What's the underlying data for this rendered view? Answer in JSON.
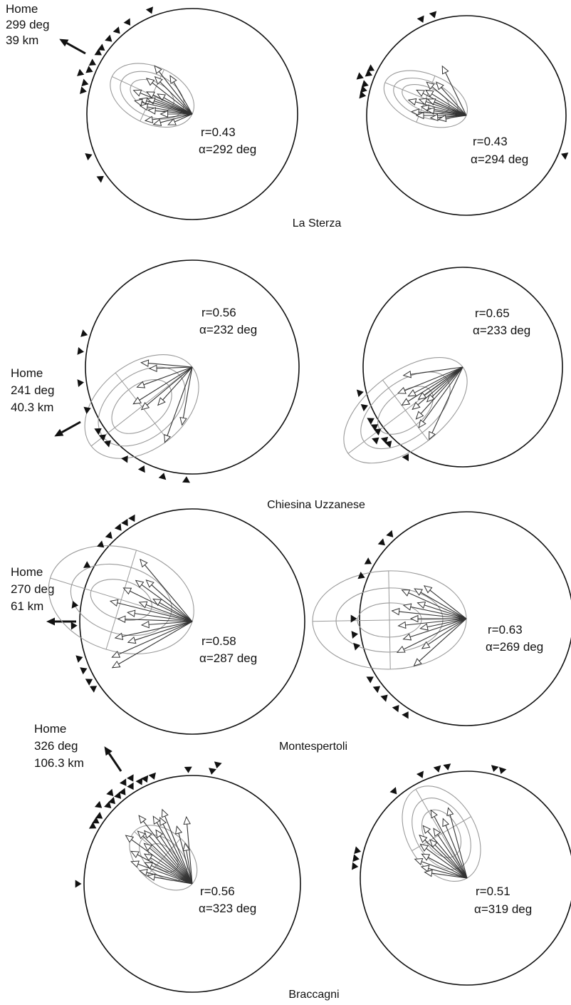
{
  "chart_data": [
    {
      "type": "scatter",
      "site": "La Sterza",
      "home": {
        "label": "Home",
        "bearing_text": "299 deg",
        "distance_text": "39 km",
        "bearing_deg": 299
      },
      "panels": [
        {
          "r_label": "r=0.43",
          "alpha_label": "α=292 deg",
          "vector_bearings_deg": [
            330,
            322,
            315,
            308,
            300,
            296,
            292,
            289,
            286,
            283,
            279,
            275,
            270,
            262,
            255,
            246
          ],
          "vector_lengths": [
            0.42,
            0.58,
            0.5,
            0.55,
            0.38,
            0.48,
            0.6,
            0.45,
            0.52,
            0.56,
            0.5,
            0.42,
            0.3,
            0.45,
            0.38,
            0.25
          ],
          "released_bearings_deg": [
            338,
            325,
            318,
            312,
            306,
            303,
            297,
            293,
            290,
            286,
            282,
            248,
            235
          ],
          "confidence_ellipses": [
            {
              "bearing_deg": 295,
              "semi_major": 0.22,
              "semi_minor": 0.13
            },
            {
              "bearing_deg": 295,
              "semi_major": 0.32,
              "semi_minor": 0.2
            },
            {
              "bearing_deg": 295,
              "semi_major": 0.42,
              "semi_minor": 0.27
            }
          ]
        },
        {
          "r_label": "r=0.43",
          "alpha_label": "α=294 deg",
          "vector_bearings_deg": [
            334,
            318,
            310,
            302,
            297,
            293,
            289,
            285,
            281,
            278,
            274,
            270,
            266,
            262
          ],
          "vector_lengths": [
            0.55,
            0.45,
            0.52,
            0.48,
            0.56,
            0.42,
            0.5,
            0.6,
            0.46,
            0.4,
            0.55,
            0.5,
            0.36,
            0.28
          ],
          "released_bearings_deg": [
            342,
            335,
            296,
            293,
            290,
            287,
            284,
            281,
            112
          ],
          "confidence_ellipses": [
            {
              "bearing_deg": 292,
              "semi_major": 0.25,
              "semi_minor": 0.12
            },
            {
              "bearing_deg": 292,
              "semi_major": 0.34,
              "semi_minor": 0.18
            },
            {
              "bearing_deg": 292,
              "semi_major": 0.44,
              "semi_minor": 0.25
            }
          ]
        }
      ]
    },
    {
      "type": "scatter",
      "site": "Chiesina Uzzanese",
      "home": {
        "label": "Home",
        "bearing_text": "241 deg",
        "distance_text": "40.3 km",
        "bearing_deg": 241
      },
      "panels": [
        {
          "r_label": "r=0.56",
          "alpha_label": "α=232 deg",
          "vector_bearings_deg": [
            275,
            268,
            250,
            238,
            230,
            222,
            200,
            190
          ],
          "vector_lengths": [
            0.48,
            0.4,
            0.55,
            0.65,
            0.62,
            0.48,
            0.75,
            0.55
          ],
          "released_bearings_deg": [
            287,
            278,
            262,
            248,
            236,
            232,
            228,
            216,
            206,
            195,
            183
          ],
          "confidence_ellipses": [
            {
              "bearing_deg": 232,
              "semi_major": 0.32,
              "semi_minor": 0.2
            },
            {
              "bearing_deg": 232,
              "semi_major": 0.46,
              "semi_minor": 0.3
            },
            {
              "bearing_deg": 232,
              "semi_major": 0.6,
              "semi_minor": 0.4
            }
          ]
        },
        {
          "r_label": "r=0.65",
          "alpha_label": "α=233 deg",
          "vector_bearings_deg": [
            262,
            248,
            242,
            238,
            234,
            230,
            226,
            222,
            216,
            205
          ],
          "vector_lengths": [
            0.6,
            0.7,
            0.62,
            0.72,
            0.55,
            0.66,
            0.5,
            0.7,
            0.75,
            0.8
          ],
          "released_bearings_deg": [
            256,
            248,
            240,
            236,
            233,
            230,
            227,
            224,
            212
          ],
          "confidence_ellipses": [
            {
              "bearing_deg": 233,
              "semi_major": 0.32,
              "semi_minor": 0.18
            },
            {
              "bearing_deg": 233,
              "semi_major": 0.52,
              "semi_minor": 0.28
            },
            {
              "bearing_deg": 233,
              "semi_major": 0.72,
              "semi_minor": 0.38
            }
          ]
        }
      ]
    },
    {
      "type": "scatter",
      "site": "Montespertoli",
      "home": {
        "label": "Home",
        "bearing_text": "270 deg",
        "distance_text": "61 km",
        "bearing_deg": 270
      },
      "panels": [
        {
          "r_label": "r=0.58",
          "alpha_label": "α=287 deg",
          "vector_bearings_deg": [
            320,
            312,
            306,
            300,
            296,
            290,
            284,
            278,
            272,
            266,
            258,
            252,
            246,
            240
          ],
          "vector_lengths": [
            0.72,
            0.55,
            0.62,
            0.4,
            0.68,
            0.5,
            0.75,
            0.58,
            0.66,
            0.45,
            0.7,
            0.6,
            0.78,
            0.82
          ],
          "released_bearings_deg": [
            330,
            326,
            322,
            316,
            310,
            298,
            278,
            268,
            252,
            246,
            240,
            236
          ],
          "confidence_ellipses": [
            {
              "bearing_deg": 287,
              "semi_major": 0.28,
              "semi_minor": 0.17
            },
            {
              "bearing_deg": 287,
              "semi_major": 0.46,
              "semi_minor": 0.3
            },
            {
              "bearing_deg": 287,
              "semi_major": 0.66,
              "semi_minor": 0.46
            }
          ]
        },
        {
          "r_label": "r=0.63",
          "alpha_label": "α=269 deg",
          "vector_bearings_deg": [
            308,
            300,
            294,
            288,
            282,
            276,
            270,
            264,
            258,
            252,
            244,
            236,
            228
          ],
          "vector_lengths": [
            0.5,
            0.56,
            0.66,
            0.48,
            0.6,
            0.7,
            0.52,
            0.64,
            0.44,
            0.62,
            0.72,
            0.5,
            0.66
          ],
          "released_bearings_deg": [
            318,
            312,
            300,
            292,
            270,
            262,
            256,
            238,
            232,
            226,
            218,
            212
          ],
          "confidence_ellipses": [
            {
              "bearing_deg": 269,
              "semi_major": 0.3,
              "semi_minor": 0.16
            },
            {
              "bearing_deg": 269,
              "semi_major": 0.5,
              "semi_minor": 0.3
            },
            {
              "bearing_deg": 269,
              "semi_major": 0.72,
              "semi_minor": 0.46
            }
          ]
        }
      ]
    },
    {
      "type": "scatter",
      "site": "Braccagni",
      "home": {
        "label": "Home",
        "bearing_text": "326 deg",
        "distance_text": "106.3 km",
        "bearing_deg": 326
      },
      "panels": [
        {
          "r_label": "r=0.56",
          "alpha_label": "α=323 deg",
          "vector_bearings_deg": [
            355,
            350,
            345,
            338,
            334,
            330,
            326,
            322,
            318,
            314,
            310,
            306,
            302,
            298,
            294,
            290,
            284,
            280
          ],
          "vector_lengths": [
            0.62,
            0.38,
            0.55,
            0.74,
            0.68,
            0.72,
            0.6,
            0.8,
            0.66,
            0.7,
            0.58,
            0.76,
            0.52,
            0.64,
            0.48,
            0.6,
            0.5,
            0.42
          ],
          "released_bearings_deg": [
            340,
            336,
            333,
            330,
            328,
            326,
            323,
            320,
            318,
            316,
            313,
            310,
            306,
            303,
            300,
            358,
            10,
            12,
            270
          ],
          "confidence_ellipses": [
            {
              "bearing_deg": 312,
              "semi_major": 0.16,
              "semi_minor": 0.1
            },
            {
              "bearing_deg": 312,
              "semi_major": 0.26,
              "semi_minor": 0.16
            },
            {
              "bearing_deg": 312,
              "semi_major": 0.36,
              "semi_minor": 0.24
            }
          ]
        },
        {
          "r_label": "r=0.51",
          "alpha_label": "α=319 deg",
          "vector_bearings_deg": [
            345,
            338,
            332,
            326,
            320,
            316,
            312,
            306,
            298,
            290,
            284,
            278
          ],
          "vector_lengths": [
            0.68,
            0.6,
            0.72,
            0.56,
            0.64,
            0.5,
            0.6,
            0.54,
            0.48,
            0.52,
            0.44,
            0.4
          ],
          "released_bearings_deg": [
            18,
            14,
            350,
            345,
            336,
            320,
            284,
            280,
            276
          ],
          "confidence_ellipses": [
            {
              "bearing_deg": 330,
              "semi_major": 0.24,
              "semi_minor": 0.16
            },
            {
              "bearing_deg": 330,
              "semi_major": 0.36,
              "semi_minor": 0.24
            },
            {
              "bearing_deg": 330,
              "semi_major": 0.48,
              "semi_minor": 0.32
            }
          ]
        }
      ]
    }
  ]
}
